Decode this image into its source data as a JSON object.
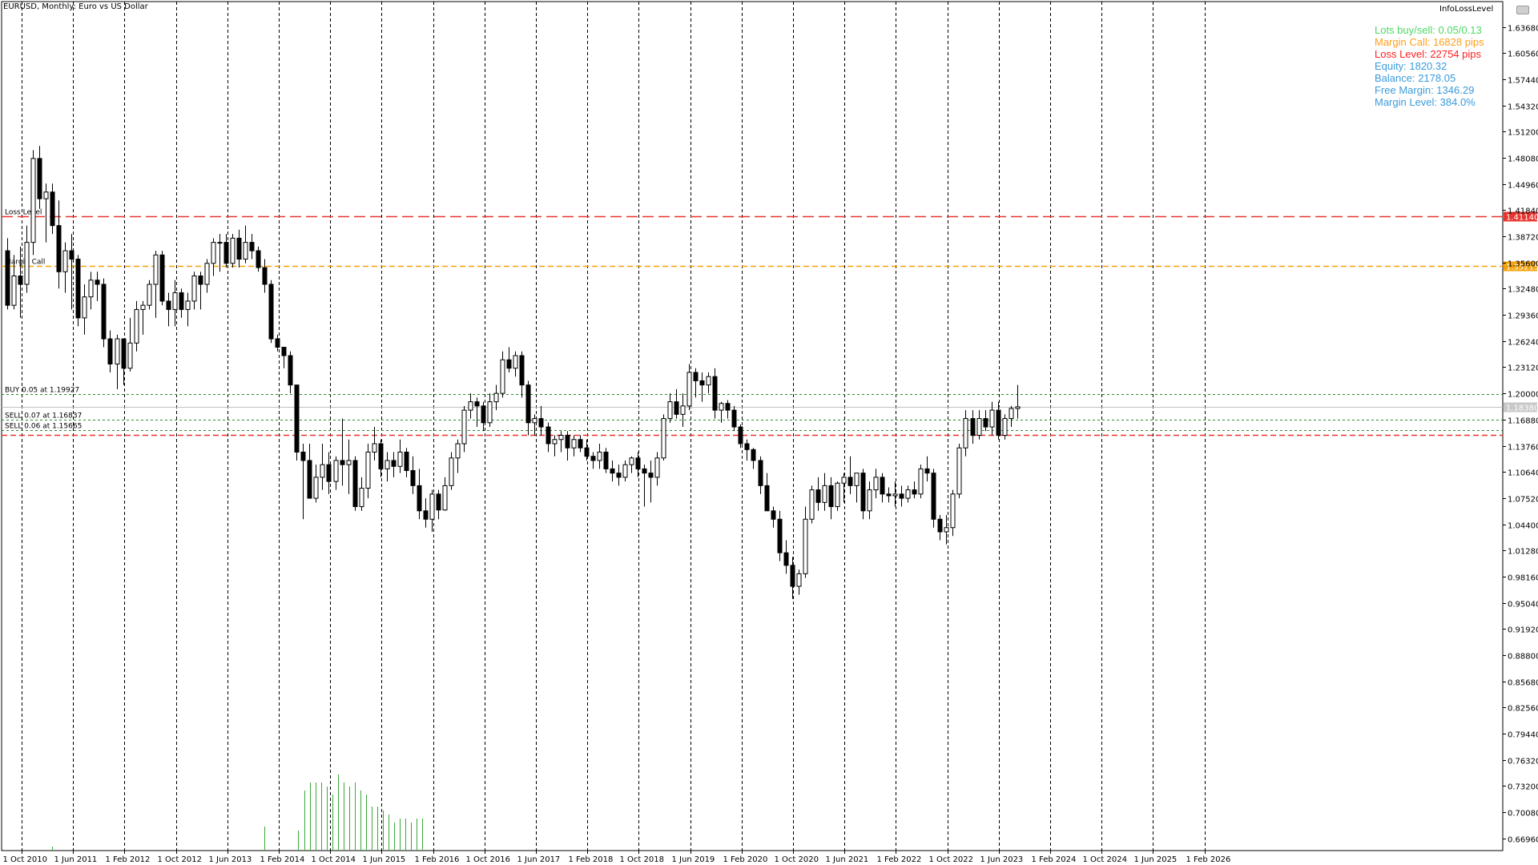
{
  "window": {
    "title": "EURUSD, Monthly:  Euro vs US Dollar",
    "indicator_name": "InfoLossLevel"
  },
  "info_panel": [
    {
      "text": "Lots buy/sell: 0.05/0.13",
      "color": "#4cd964"
    },
    {
      "text": "Margin Call: 16828 pips",
      "color": "#ff9f1a"
    },
    {
      "text": "Loss Level: 22754 pips",
      "color": "#ff2020"
    },
    {
      "text": "Equity: 1820.32",
      "color": "#3a9bdc"
    },
    {
      "text": "Balance: 2178.05",
      "color": "#3a9bdc"
    },
    {
      "text": "Free Margin: 1346.29",
      "color": "#3a9bdc"
    },
    {
      "text": "Margin Level: 384.0%",
      "color": "#3a9bdc"
    }
  ],
  "chart_data": {
    "type": "candlestick",
    "symbol": "EURUSD",
    "timeframe": "Monthly",
    "price_scale": [
      "1.63680",
      "1.60560",
      "1.57440",
      "1.54320",
      "1.51200",
      "1.48080",
      "1.44960",
      "1.41840",
      "1.38720",
      "1.35600",
      "1.32480",
      "1.29360",
      "1.26240",
      "1.23120",
      "1.20000",
      "1.16880",
      "1.13760",
      "1.10640",
      "1.07520",
      "1.04400",
      "1.01280",
      "0.98160",
      "0.95040",
      "0.91920",
      "0.88800",
      "0.85680",
      "0.82560",
      "0.79440",
      "0.76320",
      "0.73200",
      "0.70080",
      "0.66960"
    ],
    "price_range": [
      0.655,
      1.667
    ],
    "time_labels": [
      "1 Oct 2010",
      "1 Jun 2011",
      "1 Feb 2012",
      "1 Oct 2012",
      "1 Jun 2013",
      "1 Feb 2014",
      "1 Oct 2014",
      "1 Jun 2015",
      "1 Feb 2016",
      "1 Oct 2016",
      "1 Jun 2017",
      "1 Feb 2018",
      "1 Oct 2018",
      "1 Jun 2019",
      "1 Feb 2020",
      "1 Oct 2020",
      "1 Jun 2021",
      "1 Feb 2022",
      "1 Oct 2022",
      "1 Jun 2023",
      "1 Feb 2024",
      "1 Oct 2024",
      "1 Jun 2025",
      "1 Feb 2026"
    ],
    "grid": "vertical dashed at time labels",
    "levels": [
      {
        "name": "Loss Level",
        "label": "Loss Level",
        "price": 1.4114,
        "price_label": "1.41140",
        "color": "#e8352e",
        "style": "long-dash"
      },
      {
        "name": "Margin Call",
        "label": "Margin Call",
        "price": 1.3522,
        "price_label": "1.35215",
        "color": "#f5a30a",
        "style": "dash"
      },
      {
        "name": "buy-1",
        "label": "BUY 0.05 at 1.19927",
        "price": 1.19927,
        "color": "#2e8b2e",
        "style": "dot"
      },
      {
        "name": "current",
        "label": "",
        "price": 1.1838,
        "price_label": "1.18380",
        "color": "#c0c0c0",
        "style": "solid"
      },
      {
        "name": "sell-1",
        "label": "SELL 0.07 at 1.16837",
        "price": 1.16837,
        "color": "#2e8b2e",
        "style": "dot"
      },
      {
        "name": "sell-2",
        "label": "SELL 0.06 at 1.15665",
        "price": 1.15665,
        "color": "#2e8b2e",
        "style": "dot"
      },
      {
        "name": "stop",
        "label": "",
        "price": 1.1505,
        "color": "#e8352e",
        "style": "dash"
      }
    ],
    "candles": [
      [
        1.37,
        1.385,
        1.3,
        1.305
      ],
      [
        1.305,
        1.365,
        1.3,
        1.34
      ],
      [
        1.34,
        1.375,
        1.29,
        1.33
      ],
      [
        1.33,
        1.4,
        1.32,
        1.38
      ],
      [
        1.38,
        1.49,
        1.365,
        1.48
      ],
      [
        1.48,
        1.495,
        1.42,
        1.432
      ],
      [
        1.432,
        1.45,
        1.38,
        1.44
      ],
      [
        1.44,
        1.45,
        1.39,
        1.4
      ],
      [
        1.4,
        1.43,
        1.325,
        1.345
      ],
      [
        1.345,
        1.38,
        1.32,
        1.37
      ],
      [
        1.37,
        1.39,
        1.3,
        1.36
      ],
      [
        1.36,
        1.365,
        1.28,
        1.29
      ],
      [
        1.29,
        1.33,
        1.27,
        1.315
      ],
      [
        1.315,
        1.345,
        1.3,
        1.335
      ],
      [
        1.335,
        1.345,
        1.31,
        1.33
      ],
      [
        1.33,
        1.337,
        1.255,
        1.265
      ],
      [
        1.265,
        1.275,
        1.225,
        1.235
      ],
      [
        1.235,
        1.27,
        1.205,
        1.265
      ],
      [
        1.265,
        1.265,
        1.21,
        1.23
      ],
      [
        1.23,
        1.29,
        1.226,
        1.26
      ],
      [
        1.26,
        1.31,
        1.25,
        1.3
      ],
      [
        1.3,
        1.31,
        1.27,
        1.305
      ],
      [
        1.305,
        1.335,
        1.3,
        1.33
      ],
      [
        1.33,
        1.37,
        1.29,
        1.365
      ],
      [
        1.365,
        1.37,
        1.305,
        1.31
      ],
      [
        1.31,
        1.32,
        1.28,
        1.3
      ],
      [
        1.3,
        1.335,
        1.28,
        1.32
      ],
      [
        1.32,
        1.325,
        1.29,
        1.3
      ],
      [
        1.3,
        1.32,
        1.28,
        1.31
      ],
      [
        1.31,
        1.345,
        1.3,
        1.34
      ],
      [
        1.34,
        1.345,
        1.3,
        1.33
      ],
      [
        1.33,
        1.36,
        1.32,
        1.355
      ],
      [
        1.355,
        1.385,
        1.34,
        1.38
      ],
      [
        1.38,
        1.39,
        1.345,
        1.38
      ],
      [
        1.38,
        1.39,
        1.35,
        1.355
      ],
      [
        1.355,
        1.39,
        1.35,
        1.385
      ],
      [
        1.385,
        1.395,
        1.35,
        1.36
      ],
      [
        1.36,
        1.4,
        1.355,
        1.38
      ],
      [
        1.38,
        1.39,
        1.36,
        1.37
      ],
      [
        1.37,
        1.375,
        1.345,
        1.35
      ],
      [
        1.35,
        1.36,
        1.32,
        1.33
      ],
      [
        1.33,
        1.335,
        1.26,
        1.265
      ],
      [
        1.265,
        1.27,
        1.25,
        1.255
      ],
      [
        1.255,
        1.255,
        1.23,
        1.245
      ],
      [
        1.245,
        1.25,
        1.2,
        1.21
      ],
      [
        1.21,
        1.21,
        1.12,
        1.13
      ],
      [
        1.13,
        1.14,
        1.05,
        1.12
      ],
      [
        1.12,
        1.14,
        1.08,
        1.075
      ],
      [
        1.075,
        1.115,
        1.07,
        1.1
      ],
      [
        1.1,
        1.14,
        1.085,
        1.115
      ],
      [
        1.115,
        1.13,
        1.08,
        1.095
      ],
      [
        1.095,
        1.125,
        1.085,
        1.12
      ],
      [
        1.12,
        1.17,
        1.09,
        1.115
      ],
      [
        1.115,
        1.145,
        1.08,
        1.12
      ],
      [
        1.12,
        1.125,
        1.06,
        1.065
      ],
      [
        1.065,
        1.1,
        1.06,
        1.087
      ],
      [
        1.087,
        1.14,
        1.075,
        1.13
      ],
      [
        1.13,
        1.16,
        1.12,
        1.14
      ],
      [
        1.14,
        1.145,
        1.1,
        1.11
      ],
      [
        1.11,
        1.13,
        1.095,
        1.12
      ],
      [
        1.12,
        1.13,
        1.1,
        1.113
      ],
      [
        1.113,
        1.145,
        1.105,
        1.13
      ],
      [
        1.13,
        1.135,
        1.1,
        1.108
      ],
      [
        1.108,
        1.125,
        1.08,
        1.09
      ],
      [
        1.09,
        1.11,
        1.05,
        1.06
      ],
      [
        1.06,
        1.075,
        1.04,
        1.05
      ],
      [
        1.05,
        1.085,
        1.035,
        1.08
      ],
      [
        1.08,
        1.085,
        1.05,
        1.061
      ],
      [
        1.061,
        1.1,
        1.06,
        1.09
      ],
      [
        1.09,
        1.13,
        1.085,
        1.123
      ],
      [
        1.123,
        1.145,
        1.105,
        1.14
      ],
      [
        1.14,
        1.185,
        1.13,
        1.18
      ],
      [
        1.18,
        1.2,
        1.17,
        1.19
      ],
      [
        1.19,
        1.195,
        1.16,
        1.185
      ],
      [
        1.185,
        1.19,
        1.155,
        1.165
      ],
      [
        1.165,
        1.2,
        1.16,
        1.19
      ],
      [
        1.19,
        1.21,
        1.18,
        1.2
      ],
      [
        1.2,
        1.25,
        1.195,
        1.24
      ],
      [
        1.24,
        1.255,
        1.225,
        1.23
      ],
      [
        1.23,
        1.25,
        1.22,
        1.245
      ],
      [
        1.245,
        1.25,
        1.195,
        1.21
      ],
      [
        1.21,
        1.215,
        1.15,
        1.165
      ],
      [
        1.165,
        1.175,
        1.15,
        1.17
      ],
      [
        1.17,
        1.185,
        1.15,
        1.16
      ],
      [
        1.16,
        1.165,
        1.13,
        1.14
      ],
      [
        1.14,
        1.15,
        1.125,
        1.145
      ],
      [
        1.145,
        1.155,
        1.13,
        1.15
      ],
      [
        1.15,
        1.155,
        1.12,
        1.135
      ],
      [
        1.135,
        1.15,
        1.125,
        1.145
      ],
      [
        1.145,
        1.15,
        1.13,
        1.135
      ],
      [
        1.135,
        1.145,
        1.12,
        1.125
      ],
      [
        1.125,
        1.13,
        1.11,
        1.12
      ],
      [
        1.12,
        1.14,
        1.11,
        1.13
      ],
      [
        1.13,
        1.135,
        1.105,
        1.11
      ],
      [
        1.11,
        1.12,
        1.095,
        1.105
      ],
      [
        1.105,
        1.115,
        1.09,
        1.1
      ],
      [
        1.1,
        1.12,
        1.095,
        1.115
      ],
      [
        1.115,
        1.125,
        1.105,
        1.123
      ],
      [
        1.123,
        1.13,
        1.1,
        1.11
      ],
      [
        1.11,
        1.115,
        1.065,
        1.105
      ],
      [
        1.105,
        1.12,
        1.07,
        1.1
      ],
      [
        1.1,
        1.13,
        1.09,
        1.123
      ],
      [
        1.123,
        1.175,
        1.12,
        1.17
      ],
      [
        1.17,
        1.2,
        1.165,
        1.19
      ],
      [
        1.19,
        1.205,
        1.17,
        1.175
      ],
      [
        1.175,
        1.2,
        1.16,
        1.185
      ],
      [
        1.185,
        1.235,
        1.18,
        1.225
      ],
      [
        1.225,
        1.23,
        1.195,
        1.215
      ],
      [
        1.215,
        1.225,
        1.19,
        1.21
      ],
      [
        1.21,
        1.225,
        1.2,
        1.22
      ],
      [
        1.22,
        1.23,
        1.17,
        1.18
      ],
      [
        1.18,
        1.19,
        1.165,
        1.188
      ],
      [
        1.188,
        1.192,
        1.17,
        1.18
      ],
      [
        1.18,
        1.185,
        1.155,
        1.16
      ],
      [
        1.16,
        1.163,
        1.135,
        1.14
      ],
      [
        1.14,
        1.145,
        1.12,
        1.133
      ],
      [
        1.133,
        1.135,
        1.11,
        1.12
      ],
      [
        1.12,
        1.125,
        1.08,
        1.09
      ],
      [
        1.09,
        1.105,
        1.06,
        1.06
      ],
      [
        1.06,
        1.065,
        1.04,
        1.05
      ],
      [
        1.05,
        1.06,
        1.0,
        1.01
      ],
      [
        1.01,
        1.025,
        0.985,
        0.995
      ],
      [
        0.995,
        1.005,
        0.955,
        0.97
      ],
      [
        0.97,
        0.99,
        0.96,
        0.985
      ],
      [
        0.985,
        1.065,
        0.98,
        1.05
      ],
      [
        1.05,
        1.09,
        1.045,
        1.085
      ],
      [
        1.085,
        1.1,
        1.06,
        1.07
      ],
      [
        1.07,
        1.105,
        1.06,
        1.09
      ],
      [
        1.09,
        1.1,
        1.05,
        1.065
      ],
      [
        1.065,
        1.095,
        1.06,
        1.093
      ],
      [
        1.093,
        1.105,
        1.07,
        1.1
      ],
      [
        1.1,
        1.125,
        1.08,
        1.09
      ],
      [
        1.09,
        1.105,
        1.07,
        1.105
      ],
      [
        1.105,
        1.11,
        1.05,
        1.06
      ],
      [
        1.06,
        1.095,
        1.05,
        1.085
      ],
      [
        1.085,
        1.11,
        1.075,
        1.1
      ],
      [
        1.1,
        1.105,
        1.07,
        1.08
      ],
      [
        1.08,
        1.088,
        1.07,
        1.078
      ],
      [
        1.078,
        1.095,
        1.065,
        1.08
      ],
      [
        1.08,
        1.09,
        1.065,
        1.075
      ],
      [
        1.075,
        1.09,
        1.07,
        1.085
      ],
      [
        1.085,
        1.095,
        1.075,
        1.08
      ],
      [
        1.08,
        1.115,
        1.075,
        1.11
      ],
      [
        1.11,
        1.125,
        1.095,
        1.105
      ],
      [
        1.105,
        1.11,
        1.04,
        1.05
      ],
      [
        1.05,
        1.055,
        1.025,
        1.035
      ],
      [
        1.035,
        1.055,
        1.02,
        1.04
      ],
      [
        1.04,
        1.085,
        1.03,
        1.08
      ],
      [
        1.08,
        1.14,
        1.075,
        1.135
      ],
      [
        1.135,
        1.18,
        1.125,
        1.17
      ],
      [
        1.17,
        1.18,
        1.14,
        1.15
      ],
      [
        1.15,
        1.18,
        1.145,
        1.17
      ],
      [
        1.17,
        1.18,
        1.155,
        1.16
      ],
      [
        1.16,
        1.19,
        1.15,
        1.18
      ],
      [
        1.18,
        1.19,
        1.145,
        1.15
      ],
      [
        1.15,
        1.175,
        1.145,
        1.17
      ],
      [
        1.17,
        1.185,
        1.16,
        1.182
      ],
      [
        1.182,
        1.21,
        1.17,
        1.184
      ]
    ],
    "volume_bars": [
      [
        0.6695,
        0.0
      ],
      [
        0.673,
        0.0
      ],
      [
        0.676,
        0.0
      ],
      [
        0.679,
        0.0
      ],
      [
        0.681,
        0.0
      ],
      [
        0.6795,
        0.0
      ],
      [
        0.678,
        0.0
      ],
      [
        0.677,
        0.0
      ]
    ]
  }
}
